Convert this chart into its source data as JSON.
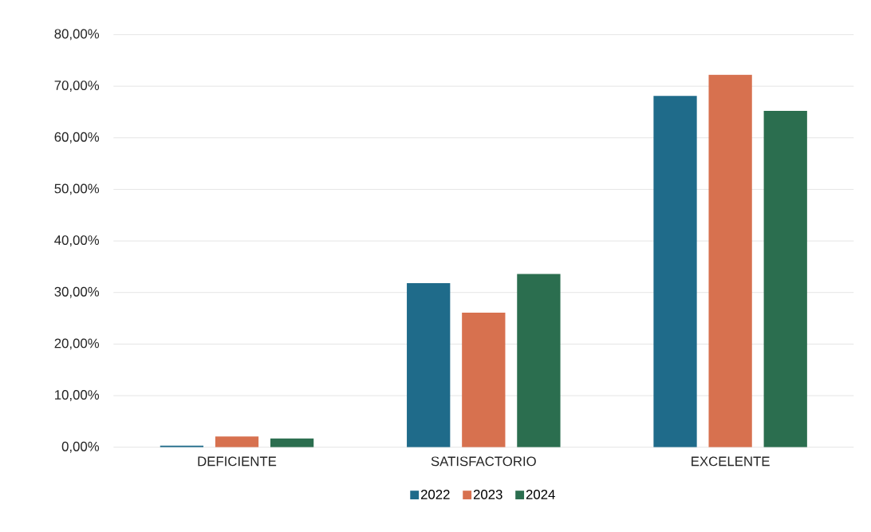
{
  "chart_data": {
    "type": "bar",
    "categories": [
      "DEFICIENTE",
      "SATISFACTORIO",
      "EXCELENTE"
    ],
    "series": [
      {
        "name": "2022",
        "color": "#1f6b8a",
        "values": [
          0.3,
          31.8,
          68.1
        ]
      },
      {
        "name": "2023",
        "color": "#d7714f",
        "values": [
          2.1,
          26.1,
          72.2
        ]
      },
      {
        "name": "2024",
        "color": "#2b6e4f",
        "values": [
          1.7,
          33.6,
          65.2
        ]
      }
    ],
    "ylim": [
      0,
      80
    ],
    "yticks": [
      {
        "value": 0,
        "label": "0,00%"
      },
      {
        "value": 10,
        "label": "10,00%"
      },
      {
        "value": 20,
        "label": "20,00%"
      },
      {
        "value": 30,
        "label": "30,00%"
      },
      {
        "value": 40,
        "label": "40,00%"
      },
      {
        "value": 50,
        "label": "50,00%"
      },
      {
        "value": 60,
        "label": "60,00%"
      },
      {
        "value": 70,
        "label": "70,00%"
      },
      {
        "value": 80,
        "label": "80,00%"
      }
    ],
    "grid": "y",
    "legend": "bottom"
  }
}
